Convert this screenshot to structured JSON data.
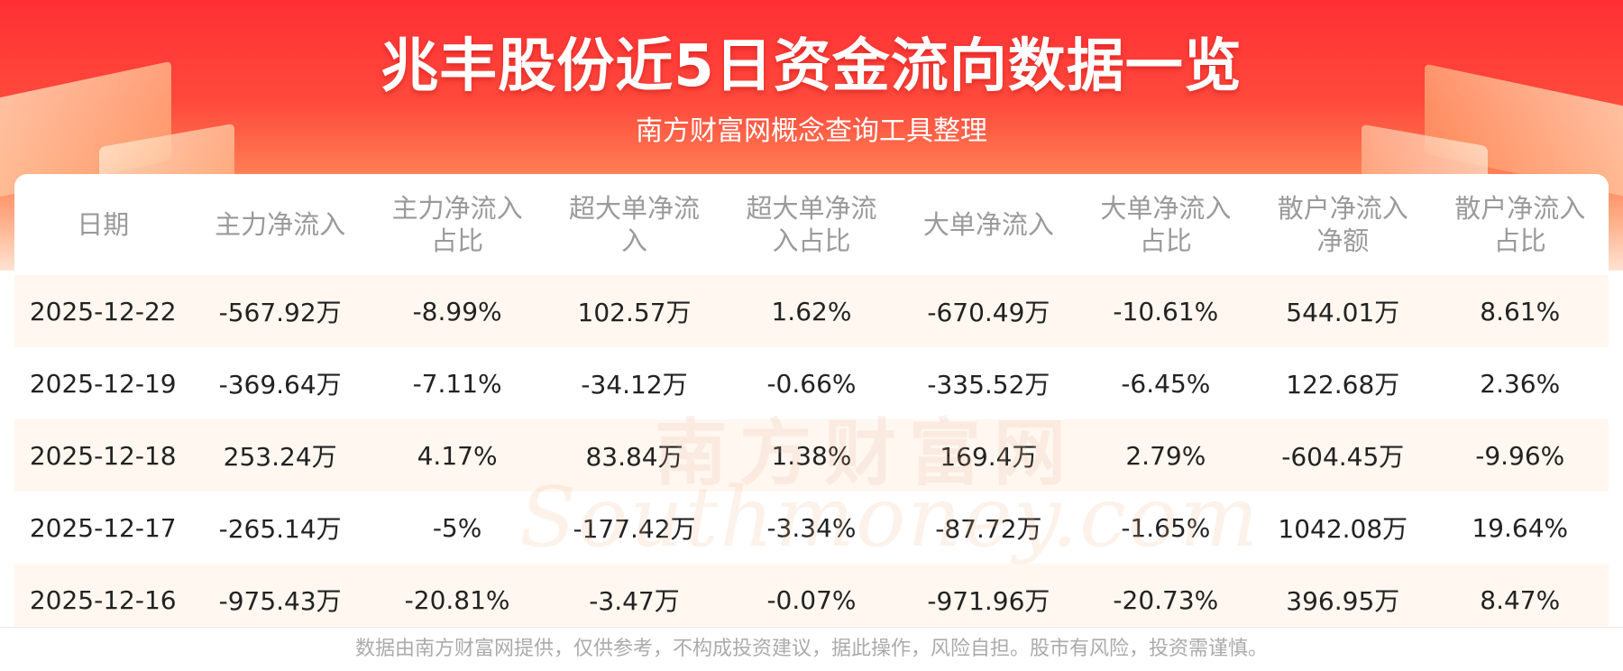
{
  "header": {
    "title": "兆丰股份近5日资金流向数据一览",
    "subtitle": "南方财富网概念查询工具整理"
  },
  "table": {
    "columns": [
      [
        "日期"
      ],
      [
        "主力净流入"
      ],
      [
        "主力净流入",
        "占比"
      ],
      [
        "超大单净流",
        "入"
      ],
      [
        "超大单净流",
        "入占比"
      ],
      [
        "大单净流入"
      ],
      [
        "大单净流入",
        "占比"
      ],
      [
        "散户净流入",
        "净额"
      ],
      [
        "散户净流入",
        "占比"
      ]
    ],
    "rows": [
      [
        "2025-12-22",
        "-567.92万",
        "-8.99%",
        "102.57万",
        "1.62%",
        "-670.49万",
        "-10.61%",
        "544.01万",
        "8.61%"
      ],
      [
        "2025-12-19",
        "-369.64万",
        "-7.11%",
        "-34.12万",
        "-0.66%",
        "-335.52万",
        "-6.45%",
        "122.68万",
        "2.36%"
      ],
      [
        "2025-12-18",
        "253.24万",
        "4.17%",
        "83.84万",
        "1.38%",
        "169.4万",
        "2.79%",
        "-604.45万",
        "-9.96%"
      ],
      [
        "2025-12-17",
        "-265.14万",
        "-5%",
        "-177.42万",
        "-3.34%",
        "-87.72万",
        "-1.65%",
        "1042.08万",
        "19.64%"
      ],
      [
        "2025-12-16",
        "-975.43万",
        "-20.81%",
        "-3.47万",
        "-0.07%",
        "-971.96万",
        "-20.73%",
        "396.95万",
        "8.47%"
      ]
    ]
  },
  "watermark": {
    "cn": "南方财富网",
    "en": "Southmoney.com"
  },
  "footer": {
    "disclaimer": "数据由南方财富网提供，仅供参考，不构成投资建议，据此操作，风险自担。股市有风险，投资需谨慎。"
  },
  "colors": {
    "banner_red": "#ff2f34",
    "row_stripe": "#fff7f0",
    "header_text": "#9a9a9a",
    "cell_text": "#222222"
  }
}
